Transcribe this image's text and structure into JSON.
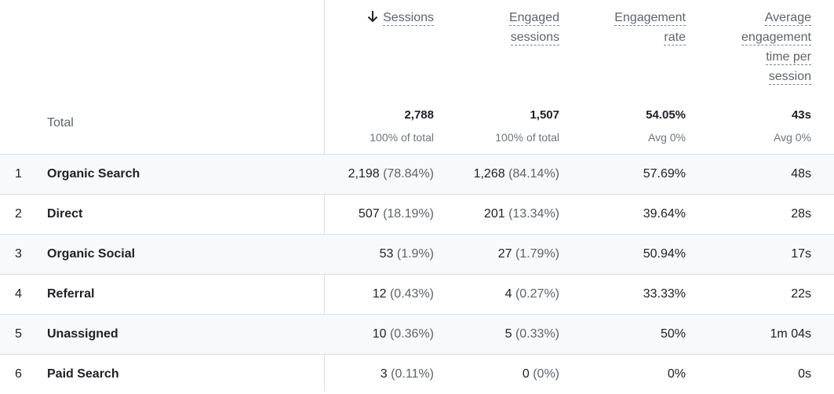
{
  "columns": {
    "sessions": "Sessions",
    "engaged_sessions": [
      "Engaged",
      "sessions"
    ],
    "engagement_rate": [
      "Engagement",
      "rate"
    ],
    "avg_engagement_time": [
      "Average",
      "engagement",
      "time per",
      "session"
    ]
  },
  "sort": {
    "icon": "arrow-down-icon",
    "column": "Sessions"
  },
  "total": {
    "label": "Total",
    "sessions": "2,788",
    "sessions_sub": "100% of total",
    "engaged_sessions": "1,507",
    "engaged_sub": "100% of total",
    "engagement_rate": "54.05%",
    "rate_sub": "Avg 0%",
    "avg_time": "43s",
    "time_sub": "Avg 0%"
  },
  "rows": [
    {
      "index": "1",
      "channel": "Organic Search",
      "sessions": "2,198",
      "sessions_pct": "(78.84%)",
      "engaged": "1,268",
      "engaged_pct": "(84.14%)",
      "rate": "57.69%",
      "time": "48s"
    },
    {
      "index": "2",
      "channel": "Direct",
      "sessions": "507",
      "sessions_pct": "(18.19%)",
      "engaged": "201",
      "engaged_pct": "(13.34%)",
      "rate": "39.64%",
      "time": "28s"
    },
    {
      "index": "3",
      "channel": "Organic Social",
      "sessions": "53",
      "sessions_pct": "(1.9%)",
      "engaged": "27",
      "engaged_pct": "(1.79%)",
      "rate": "50.94%",
      "time": "17s"
    },
    {
      "index": "4",
      "channel": "Referral",
      "sessions": "12",
      "sessions_pct": "(0.43%)",
      "engaged": "4",
      "engaged_pct": "(0.27%)",
      "rate": "33.33%",
      "time": "22s"
    },
    {
      "index": "5",
      "channel": "Unassigned",
      "sessions": "10",
      "sessions_pct": "(0.36%)",
      "engaged": "5",
      "engaged_pct": "(0.33%)",
      "rate": "50%",
      "time": "1m 04s"
    },
    {
      "index": "6",
      "channel": "Paid Search",
      "sessions": "3",
      "sessions_pct": "(0.11%)",
      "engaged": "0",
      "engaged_pct": "(0%)",
      "rate": "0%",
      "time": "0s"
    }
  ]
}
